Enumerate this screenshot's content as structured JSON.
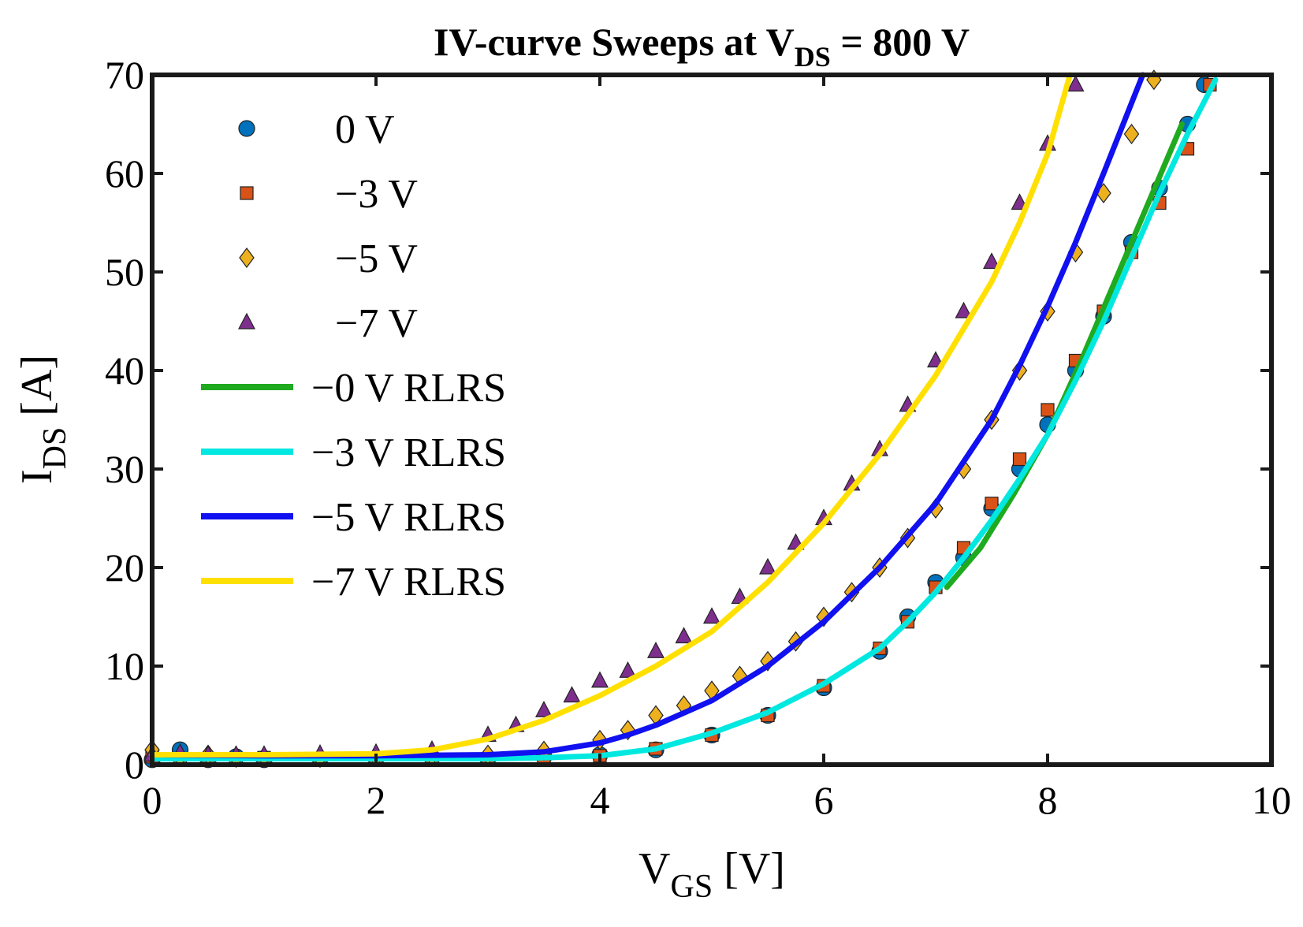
{
  "chart_data": {
    "type": "scatter",
    "title": {
      "main": "IV-curve Sweeps at V",
      "sub": "DS",
      "rest": " = 800 V"
    },
    "xlabel": {
      "main": "V",
      "sub": "GS",
      "rest": " [V]"
    },
    "ylabel": {
      "main": "I",
      "sub": "DS",
      "rest": " [A]"
    },
    "xlim": [
      0,
      10
    ],
    "ylim": [
      0,
      70
    ],
    "xticks": [
      0,
      2,
      4,
      6,
      8,
      10
    ],
    "yticks": [
      0,
      10,
      20,
      30,
      40,
      50,
      60,
      70
    ],
    "legend_position": "top-left",
    "scatter_series": [
      {
        "name": "0 V",
        "marker": "circle",
        "color": "#0072bd",
        "x": [
          0.0,
          0.25,
          0.5,
          0.75,
          1.0,
          1.5,
          2.0,
          2.5,
          3.0,
          3.5,
          4.0,
          4.5,
          5.0,
          5.5,
          6.0,
          6.5,
          6.75,
          7.0,
          7.25,
          7.5,
          7.75,
          8.0,
          8.25,
          8.5,
          8.75,
          9.0,
          9.25,
          9.4
        ],
        "y": [
          0.5,
          1.5,
          0.5,
          0.8,
          0.5,
          0.6,
          0.6,
          0.7,
          0.6,
          0.8,
          1.0,
          1.5,
          3.0,
          5.0,
          7.8,
          11.5,
          15.0,
          18.5,
          21.0,
          26.0,
          30.0,
          34.5,
          40.0,
          45.5,
          53.0,
          58.5,
          65.0,
          69.0
        ]
      },
      {
        "name": "−3 V",
        "marker": "square",
        "color": "#d95319",
        "x": [
          0.0,
          0.25,
          0.5,
          0.75,
          1.0,
          1.5,
          2.0,
          2.5,
          3.0,
          3.5,
          4.0,
          4.5,
          5.0,
          5.5,
          6.0,
          6.5,
          6.75,
          7.0,
          7.25,
          7.5,
          7.75,
          8.0,
          8.25,
          8.5,
          8.75,
          9.0,
          9.25,
          9.45
        ],
        "y": [
          0.8,
          0.6,
          0.6,
          0.6,
          0.7,
          0.6,
          0.6,
          0.6,
          0.6,
          0.7,
          0.9,
          1.6,
          3.0,
          5.0,
          8.0,
          11.8,
          14.5,
          18.0,
          22.0,
          26.5,
          31.0,
          36.0,
          41.0,
          46.0,
          52.0,
          57.0,
          62.5,
          69.0
        ]
      },
      {
        "name": "−5 V",
        "marker": "diamond",
        "color": "#edb120",
        "x": [
          0.0,
          0.25,
          0.5,
          0.75,
          1.0,
          1.5,
          2.0,
          2.5,
          3.0,
          3.5,
          4.0,
          4.25,
          4.5,
          4.75,
          5.0,
          5.25,
          5.5,
          5.75,
          6.0,
          6.25,
          6.5,
          6.75,
          7.0,
          7.25,
          7.5,
          7.75,
          8.0,
          8.25,
          8.5,
          8.75,
          8.95
        ],
        "y": [
          1.5,
          0.8,
          1.0,
          0.7,
          0.8,
          0.7,
          0.8,
          0.9,
          1.0,
          1.4,
          2.5,
          3.5,
          5.0,
          6.0,
          7.5,
          9.0,
          10.5,
          12.5,
          15.0,
          17.5,
          20.0,
          23.0,
          26.0,
          30.0,
          35.0,
          40.0,
          46.0,
          52.0,
          58.0,
          64.0,
          69.5
        ]
      },
      {
        "name": "−7 V",
        "marker": "triangle",
        "color": "#7e2f8e",
        "x": [
          0.0,
          0.25,
          0.5,
          0.75,
          1.0,
          1.5,
          2.0,
          2.5,
          3.0,
          3.25,
          3.5,
          3.75,
          4.0,
          4.25,
          4.5,
          4.75,
          5.0,
          5.25,
          5.5,
          5.75,
          6.0,
          6.25,
          6.5,
          6.75,
          7.0,
          7.25,
          7.5,
          7.75,
          8.0,
          8.25
        ],
        "y": [
          1.0,
          1.2,
          1.0,
          1.0,
          1.0,
          1.1,
          1.2,
          1.5,
          3.0,
          4.0,
          5.5,
          7.0,
          8.5,
          9.5,
          11.5,
          13.0,
          15.0,
          17.0,
          20.0,
          22.5,
          25.0,
          28.5,
          32.0,
          36.5,
          41.0,
          46.0,
          51.0,
          57.0,
          63.0,
          69.0
        ]
      }
    ],
    "line_series": [
      {
        "name": "−0 V RLRS",
        "color": "#1faa1f",
        "x": [
          7.1,
          7.4,
          7.7,
          8.0,
          8.3,
          8.6,
          8.9,
          9.2
        ],
        "y": [
          18.0,
          22.0,
          27.5,
          33.5,
          41.0,
          49.0,
          57.0,
          65.0
        ]
      },
      {
        "name": "−3 V RLRS",
        "color": "#00e8e0",
        "x": [
          0.0,
          1.0,
          2.0,
          3.0,
          3.5,
          4.0,
          4.5,
          5.0,
          5.5,
          6.0,
          6.5,
          6.75,
          7.0,
          7.25,
          7.5,
          7.75,
          8.0,
          8.25,
          8.5,
          8.75,
          9.0,
          9.25,
          9.5
        ],
        "y": [
          0.6,
          0.6,
          0.6,
          0.6,
          0.7,
          0.9,
          1.6,
          3.2,
          5.3,
          8.2,
          11.8,
          14.5,
          17.5,
          21.0,
          24.8,
          29.0,
          33.5,
          39.0,
          45.0,
          51.5,
          58.0,
          64.0,
          69.5
        ]
      },
      {
        "name": "−5 V RLRS",
        "color": "#1010f0",
        "x": [
          0.0,
          1.0,
          2.0,
          3.0,
          3.5,
          4.0,
          4.25,
          4.5,
          5.0,
          5.5,
          6.0,
          6.5,
          7.0,
          7.5,
          7.75,
          8.0,
          8.25,
          8.5,
          8.85
        ],
        "y": [
          1.0,
          0.9,
          0.9,
          1.0,
          1.3,
          2.2,
          3.0,
          4.0,
          6.5,
          10.0,
          14.5,
          20.0,
          26.5,
          35.0,
          40.5,
          46.5,
          53.0,
          60.0,
          70.0
        ]
      },
      {
        "name": "−7 V RLRS",
        "color": "#ffe000",
        "x": [
          0.0,
          1.0,
          2.0,
          2.5,
          3.0,
          3.5,
          4.0,
          4.5,
          5.0,
          5.5,
          6.0,
          6.5,
          7.0,
          7.5,
          7.75,
          8.0,
          8.2
        ],
        "y": [
          1.0,
          1.0,
          1.1,
          1.5,
          2.6,
          4.5,
          7.0,
          10.0,
          13.5,
          18.5,
          24.5,
          31.5,
          39.5,
          49.0,
          55.0,
          62.0,
          70.0
        ]
      }
    ],
    "legend": [
      "0 V",
      "−3 V",
      "−5 V",
      "−7 V",
      "−0 V RLRS",
      "−3 V RLRS",
      "−5 V RLRS",
      "−7 V RLRS"
    ]
  }
}
